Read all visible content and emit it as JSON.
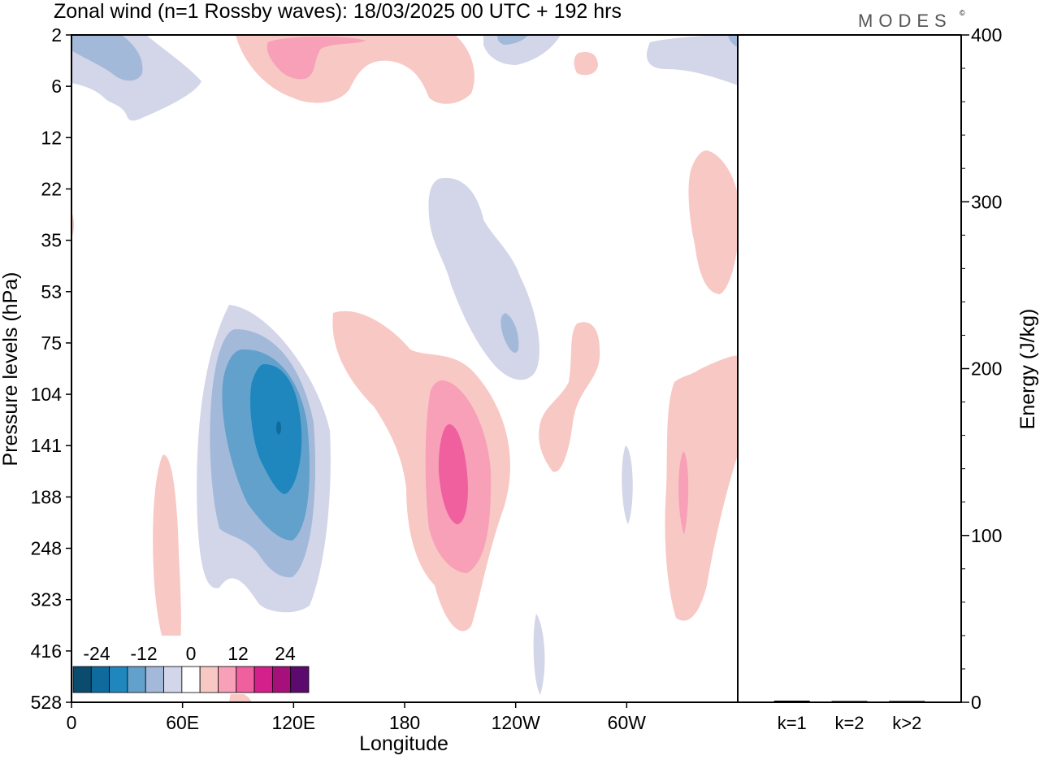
{
  "title": "Zonal wind (n=1 Rossby waves):  18/03/2025  00 UTC  + 192 hrs",
  "logo_text": "MODES",
  "logo_mark": "©",
  "chart_data": [
    {
      "type": "heatmap",
      "title": "Zonal wind (n=1 Rossby waves):  18/03/2025  00 UTC  + 192 hrs",
      "xlabel": "Longitude",
      "ylabel": "Pressure levels (hPa)",
      "x_ticks": [
        "0",
        "60E",
        "120E",
        "180",
        "120W",
        "60W"
      ],
      "x_tick_values": [
        0,
        60,
        120,
        180,
        240,
        300
      ],
      "xlim": [
        0,
        360
      ],
      "y_ticks": [
        "2",
        "6",
        "12",
        "22",
        "35",
        "53",
        "75",
        "104",
        "141",
        "188",
        "248",
        "323",
        "416",
        "528"
      ],
      "y_scale": "model levels (top 2 hPa, bottom 528 hPa)",
      "colorbar": {
        "labels": [
          "-24",
          "-12",
          "0",
          "12",
          "24"
        ],
        "label_values": [
          -24,
          -12,
          0,
          12,
          24
        ],
        "levels": [
          -30,
          -25,
          -20,
          -15,
          -10,
          -5,
          0,
          5,
          10,
          15,
          20,
          25,
          30
        ],
        "colors": [
          "#0a4b6e",
          "#0f6a9e",
          "#1f86be",
          "#62a1cc",
          "#a3b9da",
          "#d3d5e8",
          "#ffffff",
          "#f8c8c4",
          "#f7a0b8",
          "#f0609e",
          "#d4208a",
          "#a6107a",
          "#5c0a6e"
        ]
      },
      "features": [
        {
          "sign": "negative",
          "lon_center": 110,
          "level_center": "141",
          "peak": -27
        },
        {
          "sign": "positive",
          "lon_center": 200,
          "level_center": "141",
          "peak": 17
        },
        {
          "sign": "negative",
          "lon_center": 236,
          "level_center": "53",
          "peak": -11
        },
        {
          "sign": "positive",
          "lon_center": 330,
          "level_center": "188",
          "peak": 12
        },
        {
          "sign": "positive",
          "lon_center": 110,
          "level_center": "2",
          "peak": 13
        }
      ]
    },
    {
      "type": "bar",
      "ylabel": "Energy (J/kg)",
      "categories": [
        "k=1",
        "k=2",
        "k>2"
      ],
      "values": [
        0.5,
        0.3,
        0.3
      ],
      "ylim": [
        0,
        400
      ],
      "y_ticks": [
        "0",
        "100",
        "200",
        "300",
        "400"
      ],
      "y_tick_values": [
        0,
        100,
        200,
        300,
        400
      ]
    }
  ]
}
